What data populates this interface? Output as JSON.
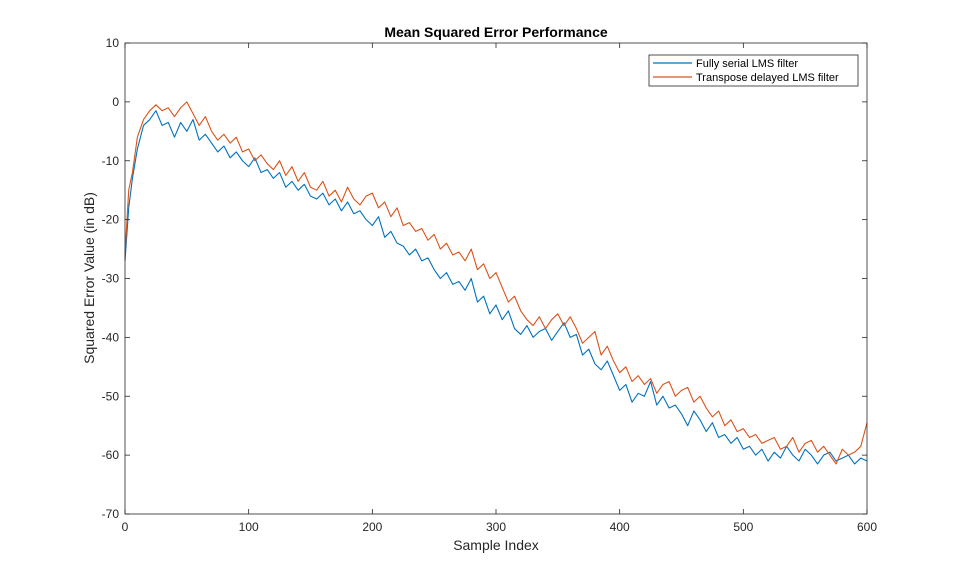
{
  "chart_data": {
    "type": "line",
    "title": "Mean Squared Error Performance",
    "xlabel": "Sample Index",
    "ylabel": "Squared Error Value (in dB)",
    "xlim": [
      0,
      600
    ],
    "ylim": [
      -70,
      10
    ],
    "xticks": [
      0,
      100,
      200,
      300,
      400,
      500,
      600
    ],
    "yticks": [
      10,
      0,
      -10,
      -20,
      -30,
      -40,
      -50,
      -60,
      -70
    ],
    "legend_location": "top-right",
    "series": [
      {
        "name": "Fully serial LMS filter",
        "color": "#0072BD",
        "x": [
          0,
          3,
          6,
          10,
          15,
          20,
          25,
          30,
          35,
          40,
          45,
          50,
          55,
          60,
          65,
          70,
          75,
          80,
          85,
          90,
          95,
          100,
          105,
          110,
          115,
          120,
          125,
          130,
          135,
          140,
          145,
          150,
          155,
          160,
          165,
          170,
          175,
          180,
          185,
          190,
          195,
          200,
          205,
          210,
          215,
          220,
          225,
          230,
          235,
          240,
          245,
          250,
          255,
          260,
          265,
          270,
          275,
          280,
          285,
          290,
          295,
          300,
          305,
          310,
          315,
          320,
          325,
          330,
          335,
          340,
          345,
          350,
          355,
          360,
          365,
          370,
          375,
          380,
          385,
          390,
          395,
          400,
          405,
          410,
          415,
          420,
          425,
          430,
          435,
          440,
          445,
          450,
          455,
          460,
          465,
          470,
          475,
          480,
          485,
          490,
          495,
          500,
          505,
          510,
          515,
          520,
          525,
          530,
          535,
          540,
          545,
          550,
          555,
          560,
          565,
          570,
          575,
          580,
          585,
          590,
          595,
          600
        ],
        "values": [
          -27,
          -18,
          -13,
          -8,
          -4,
          -3,
          -1.5,
          -4,
          -3.5,
          -6,
          -3.5,
          -5,
          -3,
          -6.5,
          -5.5,
          -7,
          -8.5,
          -7.5,
          -9.5,
          -8.5,
          -10,
          -11,
          -9.5,
          -12,
          -11.5,
          -13,
          -12,
          -14.5,
          -13.5,
          -15,
          -14,
          -16,
          -16.5,
          -15.5,
          -17.5,
          -16.5,
          -18.5,
          -17,
          -19,
          -18.5,
          -20,
          -21,
          -19.5,
          -23,
          -22,
          -24,
          -24.5,
          -26,
          -25,
          -27,
          -26.5,
          -28.5,
          -30,
          -29,
          -31,
          -30.5,
          -32,
          -30,
          -34,
          -33,
          -36,
          -34.5,
          -37,
          -35.5,
          -38.5,
          -39.5,
          -38,
          -40,
          -39,
          -38.5,
          -40.5,
          -39,
          -37.5,
          -40,
          -39.5,
          -43,
          -42,
          -44.5,
          -45.5,
          -44,
          -46.5,
          -49,
          -48,
          -51,
          -49.5,
          -50,
          -47.5,
          -51.5,
          -50,
          -52,
          -51.5,
          -53,
          -55,
          -52.5,
          -54,
          -56,
          -54.5,
          -57,
          -56.5,
          -58,
          -57,
          -59,
          -58.5,
          -60,
          -59,
          -61,
          -59.5,
          -60.5,
          -58.5,
          -60,
          -61,
          -59,
          -60,
          -61.5,
          -60,
          -59.5,
          -61,
          -60.5,
          -60,
          -61.5,
          -60.5,
          -61
        ]
      },
      {
        "name": "Transpose delayed LMS filter",
        "color": "#D95319",
        "x": [
          0,
          3,
          6,
          10,
          15,
          20,
          25,
          30,
          35,
          40,
          45,
          50,
          55,
          60,
          65,
          70,
          75,
          80,
          85,
          90,
          95,
          100,
          105,
          110,
          115,
          120,
          125,
          130,
          135,
          140,
          145,
          150,
          155,
          160,
          165,
          170,
          175,
          180,
          185,
          190,
          195,
          200,
          205,
          210,
          215,
          220,
          225,
          230,
          235,
          240,
          245,
          250,
          255,
          260,
          265,
          270,
          275,
          280,
          285,
          290,
          295,
          300,
          305,
          310,
          315,
          320,
          325,
          330,
          335,
          340,
          345,
          350,
          355,
          360,
          365,
          370,
          375,
          380,
          385,
          390,
          395,
          400,
          405,
          410,
          415,
          420,
          425,
          430,
          435,
          440,
          445,
          450,
          455,
          460,
          465,
          470,
          475,
          480,
          485,
          490,
          495,
          500,
          505,
          510,
          515,
          520,
          525,
          530,
          535,
          540,
          545,
          550,
          555,
          560,
          565,
          570,
          575,
          580,
          585,
          590,
          595,
          600
        ],
        "values": [
          -26,
          -15,
          -12,
          -6,
          -3,
          -1.5,
          -0.5,
          -1.5,
          -1,
          -2.5,
          -1,
          0,
          -2,
          -4,
          -2.5,
          -5,
          -6.5,
          -5.5,
          -7,
          -6,
          -8.5,
          -8,
          -10,
          -9,
          -10.5,
          -11.5,
          -10,
          -12.5,
          -11,
          -13.5,
          -12,
          -14.5,
          -15,
          -13.5,
          -16,
          -15,
          -17,
          -14.5,
          -16.5,
          -17.5,
          -16,
          -15.5,
          -18,
          -17,
          -19.5,
          -18,
          -21,
          -20.5,
          -22,
          -21.5,
          -23.5,
          -22.5,
          -25,
          -24,
          -26,
          -25.5,
          -27,
          -25,
          -28.5,
          -27.5,
          -30,
          -29,
          -31.5,
          -34,
          -33,
          -35.5,
          -37,
          -38,
          -36.5,
          -38.5,
          -37,
          -36,
          -38,
          -36.5,
          -38.5,
          -41,
          -40,
          -39,
          -43,
          -41.5,
          -44,
          -46,
          -45,
          -47.5,
          -46.5,
          -48,
          -47,
          -49.5,
          -48,
          -47.5,
          -50,
          -49,
          -48.5,
          -51,
          -50,
          -52,
          -53.5,
          -52.5,
          -55,
          -54,
          -56,
          -55.5,
          -57,
          -56.5,
          -58,
          -57.5,
          -57,
          -59,
          -58.5,
          -57,
          -59.5,
          -58,
          -57.5,
          -59.5,
          -58.5,
          -60,
          -61.5,
          -59,
          -60,
          -59.5,
          -58.5,
          -54.5
        ]
      }
    ]
  }
}
